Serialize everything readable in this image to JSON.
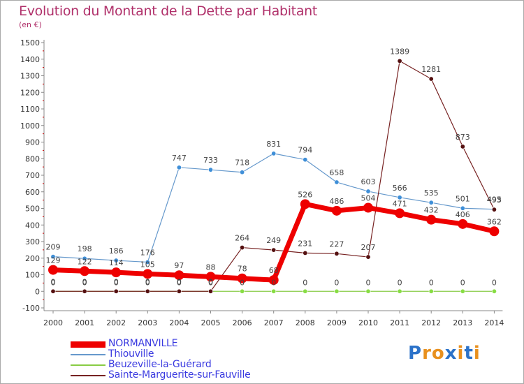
{
  "title": "Evolution du Montant de la Dette par Habitant",
  "unit_label": "(en €)",
  "logo": {
    "text": "Proxiti",
    "colors": [
      "#2b72c9",
      "#e8901e",
      "#e8901e",
      "#2b72c9",
      "#e8901e",
      "#2b72c9",
      "#e8901e"
    ]
  },
  "chart_data": {
    "type": "line",
    "x": [
      2000,
      2001,
      2002,
      2003,
      2004,
      2005,
      2006,
      2007,
      2008,
      2009,
      2010,
      2011,
      2012,
      2013,
      2014
    ],
    "ylim": [
      -100,
      1500
    ],
    "yticks": [
      -100,
      0,
      100,
      200,
      300,
      400,
      500,
      600,
      700,
      800,
      900,
      1000,
      1100,
      1200,
      1300,
      1400,
      1500
    ],
    "grid": false,
    "legend_position": "bottom-left",
    "series": [
      {
        "name": "NORMANVILLE",
        "color": "#ee0000",
        "values": [
          129,
          122,
          114,
          105,
          97,
          88,
          78,
          68,
          526,
          486,
          504,
          471,
          432,
          406,
          362
        ]
      },
      {
        "name": "Thiouville",
        "color": "#6699cc",
        "values": [
          209,
          198,
          186,
          176,
          747,
          733,
          718,
          831,
          794,
          658,
          603,
          566,
          535,
          501,
          495
        ]
      },
      {
        "name": "Beuzeville-la-Guérard",
        "color": "#88cc44",
        "values": [
          0,
          0,
          0,
          0,
          0,
          0,
          0,
          0,
          0,
          0,
          0,
          0,
          0,
          0,
          0
        ]
      },
      {
        "name": "Sainte-Marguerite-sur-Fauville",
        "color": "#772222",
        "values": [
          0,
          0,
          0,
          0,
          0,
          0,
          264,
          249,
          231,
          227,
          207,
          1389,
          1281,
          873,
          493
        ]
      }
    ]
  }
}
